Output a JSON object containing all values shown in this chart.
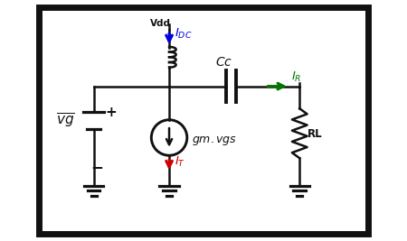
{
  "bg_color": "#ffffff",
  "border_color": "#111111",
  "line_color": "#111111",
  "vdd_label": "Vdd",
  "idc_label": "$I_{DC}$",
  "idc_color": "#0000dd",
  "vg_label": "$\\overline{vg}$",
  "gm_label": "$gm.vgs$",
  "it_label": "$I_T$",
  "it_color": "#cc0000",
  "cc_label": "$Cc$",
  "ir_label": "$I_R$",
  "ir_color": "#007700",
  "rl_label": "RL",
  "figsize": [
    4.5,
    2.67
  ],
  "dpi": 100
}
